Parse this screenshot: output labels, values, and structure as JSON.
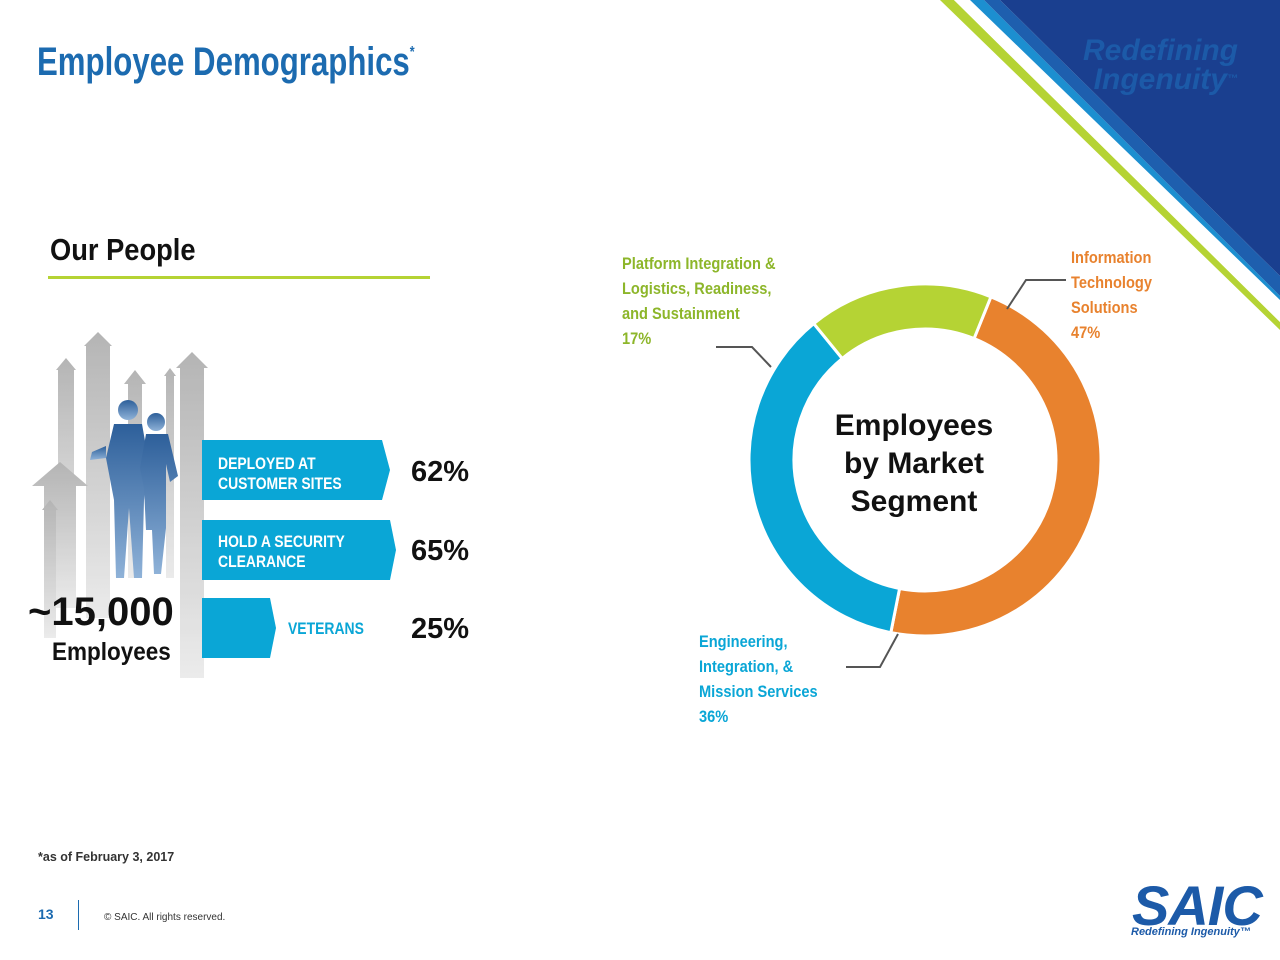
{
  "header": {
    "title": "Employee Demographics",
    "title_mark": "*",
    "tagline_line1": "Redefining",
    "tagline_line2": "Ingenuity",
    "tagline_mark": "™"
  },
  "section": {
    "heading": "Our People"
  },
  "stats": [
    {
      "label_line1": "DEPLOYED AT",
      "label_line2": "CUSTOMER SITES",
      "value": "62%",
      "percent": 62
    },
    {
      "label_line1": "HOLD A SECURITY",
      "label_line2": "CLEARANCE",
      "value": "65%",
      "percent": 65
    },
    {
      "label_line1": "VETERANS",
      "label_line2": "",
      "value": "25%",
      "percent": 25
    }
  ],
  "headcount": {
    "value": "~15,000",
    "label": "Employees"
  },
  "chart_data": {
    "type": "pie",
    "title": "Employees by Market Segment",
    "title_lines": [
      "Employees",
      "by Market",
      "Segment"
    ],
    "slices": [
      {
        "name": "Information Technology Solutions",
        "label_lines": [
          "Information",
          "Technology",
          "Solutions"
        ],
        "value": 47,
        "display": "47%",
        "color": "#e8822e"
      },
      {
        "name": "Engineering, Integration, & Mission Services",
        "label_lines": [
          "Engineering,",
          "Integration, &",
          "Mission Services"
        ],
        "value": 36,
        "display": "36%",
        "color": "#0aa6d6"
      },
      {
        "name": "Platform Integration & Logistics, Readiness, and Sustainment",
        "label_lines": [
          "Platform Integration &",
          "Logistics, Readiness,",
          "and Sustainment"
        ],
        "value": 17,
        "display": "17%",
        "color": "#b5d334"
      }
    ]
  },
  "footer": {
    "footnote": "*as of February 3, 2017",
    "page_number": "13",
    "copyright": "© SAIC. All rights reserved.",
    "logo_text": "SAIC",
    "logo_tagline": "Redefining Ingenuity™"
  },
  "colors": {
    "brand_blue": "#1c6bb0",
    "stat_bar": "#0aa6d6",
    "accent_green": "#b5d334",
    "accent_orange": "#e8822e"
  }
}
